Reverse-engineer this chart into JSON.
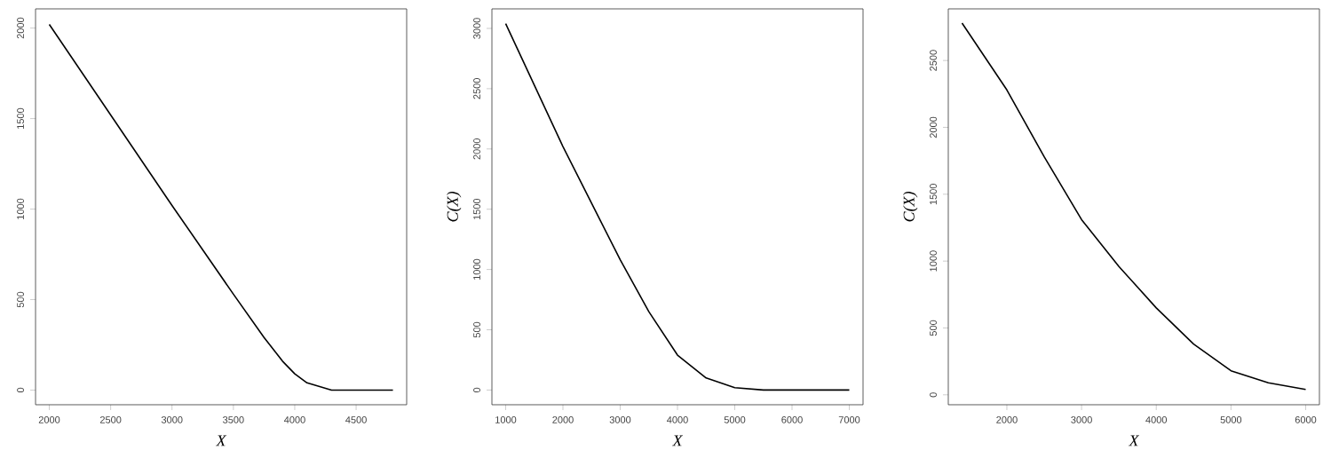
{
  "chart_data": [
    {
      "type": "line",
      "xlabel": "X",
      "x": [
        2000,
        2500,
        3000,
        3500,
        3750,
        3900,
        4000,
        4100,
        4200,
        4300,
        4500,
        4800
      ],
      "series": [
        {
          "color": "#000000",
          "values": [
            2020,
            1520,
            1020,
            530,
            290,
            160,
            90,
            40,
            20,
            0,
            0,
            0
          ]
        }
      ],
      "xlim": [
        1888,
        4912
      ],
      "ylim": [
        -81,
        2106
      ],
      "xticks": [
        2000,
        2500,
        3000,
        3500,
        4000,
        4500
      ],
      "yticks": [
        0,
        500,
        1000,
        1500,
        2000
      ],
      "marker": "none",
      "line_style": "solid"
    },
    {
      "type": "line",
      "xlabel": "X",
      "ylabel": "C(X)",
      "x": [
        1000,
        2000,
        3000,
        3500,
        4000,
        4500,
        5000,
        5500,
        6000,
        7000
      ],
      "series": [
        {
          "color": "#000000",
          "values": [
            3040,
            2020,
            1080,
            650,
            290,
            100,
            20,
            0,
            0,
            0
          ]
        }
      ],
      "xlim": [
        760,
        7240
      ],
      "ylim": [
        -122,
        3162
      ],
      "xticks": [
        1000,
        2000,
        3000,
        4000,
        5000,
        6000,
        7000
      ],
      "yticks": [
        0,
        500,
        1000,
        1500,
        2000,
        2500,
        3000
      ],
      "marker": "none",
      "line_style": "solid"
    },
    {
      "type": "line",
      "xlabel": "X",
      "ylabel": "C(X)",
      "x": [
        1400,
        2000,
        2500,
        3000,
        3500,
        4000,
        4500,
        5000,
        5500,
        6000
      ],
      "series": [
        {
          "color": "#000000",
          "values": [
            2780,
            2280,
            1780,
            1310,
            960,
            650,
            380,
            180,
            90,
            40
          ]
        }
      ],
      "xlim": [
        1216,
        6184
      ],
      "ylim": [
        -74,
        2886
      ],
      "xticks": [
        2000,
        3000,
        4000,
        5000,
        6000
      ],
      "yticks": [
        0,
        500,
        1000,
        1500,
        2000,
        2500
      ],
      "marker": "none",
      "line_style": "solid"
    }
  ]
}
